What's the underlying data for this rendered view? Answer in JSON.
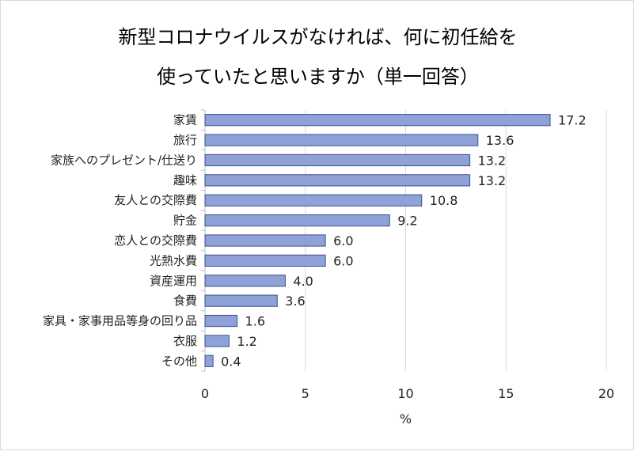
{
  "chart_data": {
    "type": "bar",
    "orientation": "horizontal",
    "title": [
      "新型コロナウイルスがなければ、何に初任給を",
      "使っていたと思いますか（単一回答）"
    ],
    "xlabel": "%",
    "ylabel": "",
    "xlim": [
      0,
      20
    ],
    "xticks": [
      "0",
      "5",
      "10",
      "15",
      "20"
    ],
    "grid": "vertical",
    "categories": [
      "家賃",
      "旅行",
      "家族へのプレゼント/仕送り",
      "趣味",
      "友人との交際費",
      "貯金",
      "恋人との交際費",
      "光熱水費",
      "資産運用",
      "食費",
      "家具・家事用品等身の回り品",
      "衣服",
      "その他"
    ],
    "values": [
      17.2,
      13.6,
      13.2,
      13.2,
      10.8,
      9.2,
      6.0,
      6.0,
      4.0,
      3.6,
      1.6,
      1.2,
      0.4
    ],
    "value_labels": [
      "17.2",
      "13.6",
      "13.2",
      "13.2",
      "10.8",
      "9.2",
      "6.0",
      "6.0",
      "4.0",
      "3.6",
      "1.6",
      "1.2",
      "0.4"
    ],
    "bar_color": "#8fa2d8",
    "bar_edge": "#3a4f8f",
    "grid_color": "#d9d9d9",
    "axis_color": "#bfbfbf"
  }
}
